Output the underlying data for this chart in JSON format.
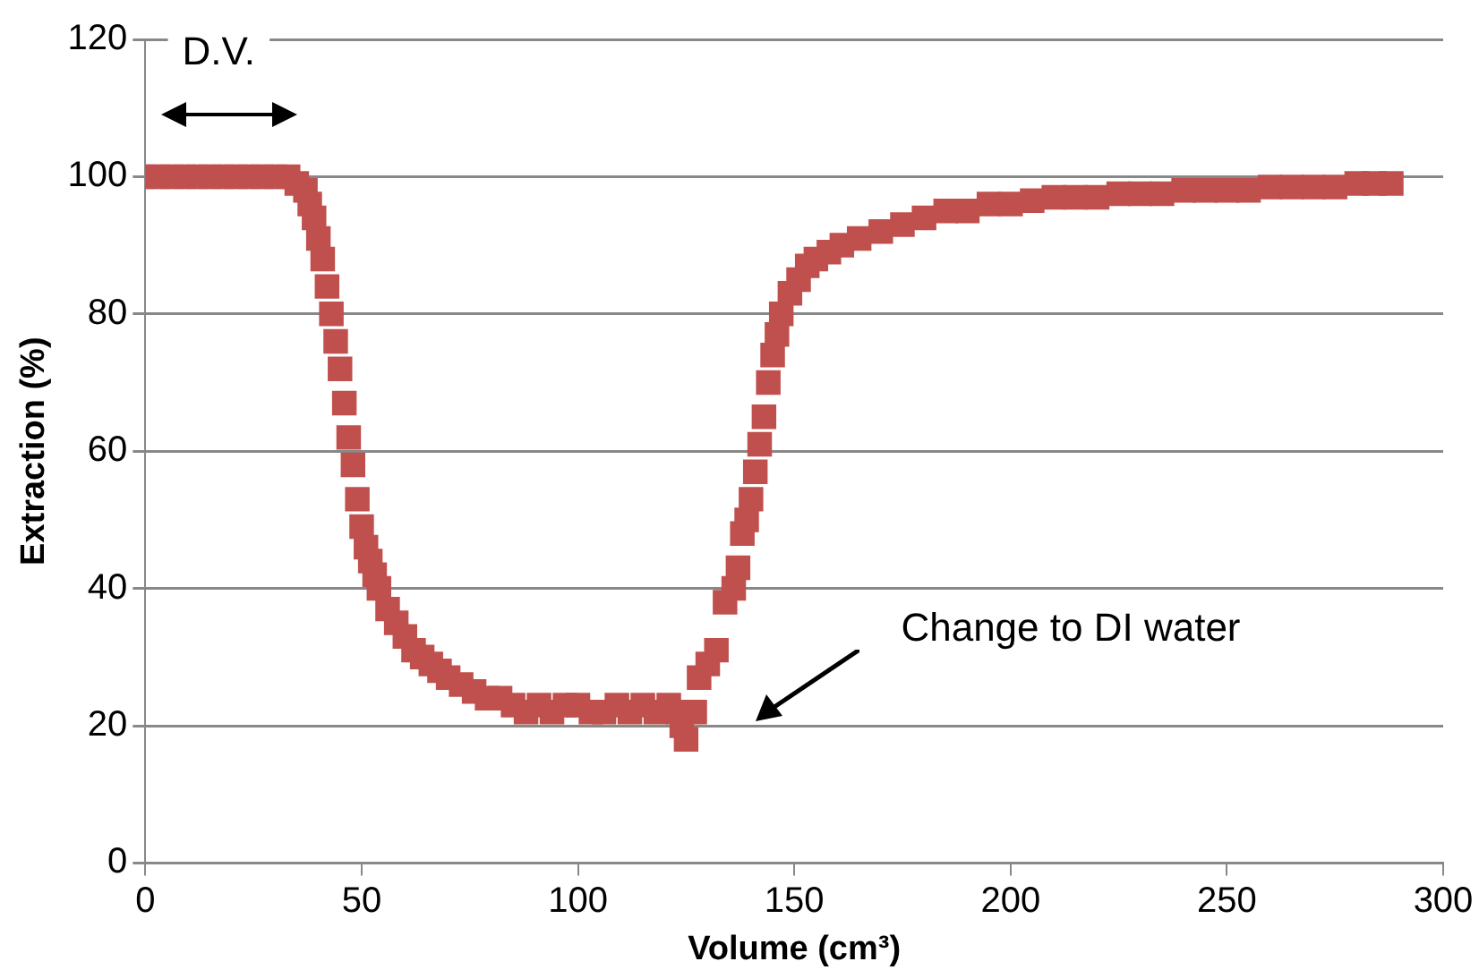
{
  "chart_data": {
    "type": "scatter",
    "xlabel": "Volume (cm³)",
    "ylabel": "Extraction (%)",
    "marker": "square",
    "grid": "y",
    "legend": false,
    "xlim": [
      0,
      300
    ],
    "xticks": [
      0,
      50,
      100,
      150,
      200,
      250,
      300
    ],
    "ylim": [
      0,
      120
    ],
    "yticks": [
      0,
      20,
      40,
      60,
      80,
      100,
      120
    ],
    "annotations": [
      "D.V.",
      "Change to DI water"
    ],
    "series": [
      {
        "color": "#c0504d",
        "x": [
          0,
          3,
          6,
          9,
          12,
          15,
          18,
          21,
          24,
          27,
          30,
          33,
          35,
          37,
          38,
          39,
          40,
          41,
          42,
          43,
          44,
          45,
          46,
          47,
          48,
          49,
          50,
          51,
          52,
          53,
          54,
          56,
          58,
          60,
          62,
          64,
          66,
          68,
          70,
          73,
          76,
          79,
          82,
          85,
          88,
          91,
          94,
          97,
          100,
          103,
          106,
          109,
          112,
          115,
          118,
          121,
          123,
          124,
          125,
          127,
          128,
          130,
          132,
          134,
          136,
          137,
          138,
          139,
          140,
          141,
          142,
          143,
          144,
          145,
          146,
          147,
          149,
          151,
          153,
          155,
          158,
          161,
          165,
          170,
          175,
          180,
          185,
          190,
          195,
          200,
          205,
          210,
          215,
          220,
          225,
          230,
          235,
          240,
          245,
          250,
          255,
          260,
          265,
          270,
          275,
          280,
          284,
          288
        ],
        "values": [
          100,
          100,
          100,
          100,
          100,
          100,
          100,
          100,
          100,
          100,
          100,
          100,
          99,
          98,
          96,
          94,
          91,
          88,
          84,
          80,
          76,
          72,
          67,
          62,
          58,
          53,
          49,
          46,
          44,
          42,
          40,
          37,
          35,
          33,
          31,
          30,
          29,
          28,
          27,
          26,
          25,
          24,
          24,
          23,
          22,
          23,
          22,
          23,
          23,
          22,
          22,
          23,
          22,
          23,
          22,
          23,
          22,
          20,
          18,
          22,
          27,
          29,
          31,
          38,
          40,
          43,
          48,
          50,
          53,
          57,
          61,
          65,
          70,
          74,
          77,
          80,
          83,
          85,
          87,
          88,
          89,
          90,
          91,
          92,
          93,
          94,
          95,
          95,
          96,
          96,
          96.5,
          97,
          97,
          97,
          97.5,
          97.5,
          97.5,
          98,
          98,
          98,
          98,
          98.5,
          98.5,
          98.5,
          98.5,
          99,
          99,
          99
        ]
      }
    ]
  }
}
